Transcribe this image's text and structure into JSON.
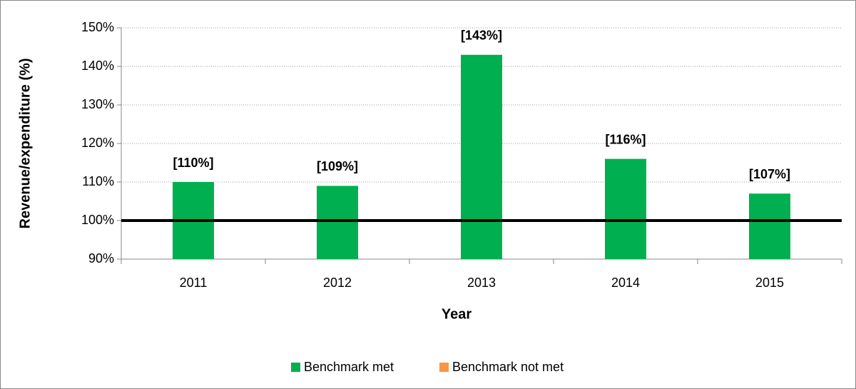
{
  "chart_data": {
    "type": "bar",
    "xlabel": "Year",
    "ylabel": "Revenue/expenditure (%)",
    "categories": [
      "2011",
      "2012",
      "2013",
      "2014",
      "2015"
    ],
    "series": [
      {
        "name": "Benchmark met",
        "color": "#00b050",
        "values": [
          110,
          109,
          143,
          116,
          107
        ],
        "value_labels": [
          "[110%]",
          "[109%]",
          "[143%]",
          "[116%]",
          "[107%]"
        ]
      },
      {
        "name": "Benchmark not met",
        "color": "#f79646",
        "values": [
          null,
          null,
          null,
          null,
          null
        ]
      }
    ],
    "reference_line": 100,
    "ylim": [
      90,
      150
    ],
    "yticks": [
      {
        "value": 90,
        "label": "90%"
      },
      {
        "value": 100,
        "label": "100%"
      },
      {
        "value": 110,
        "label": "110%"
      },
      {
        "value": 120,
        "label": "120%"
      },
      {
        "value": 130,
        "label": "130%"
      },
      {
        "value": 140,
        "label": "140%"
      },
      {
        "value": 150,
        "label": "150%"
      }
    ],
    "grid": true,
    "legend": "bottom"
  }
}
